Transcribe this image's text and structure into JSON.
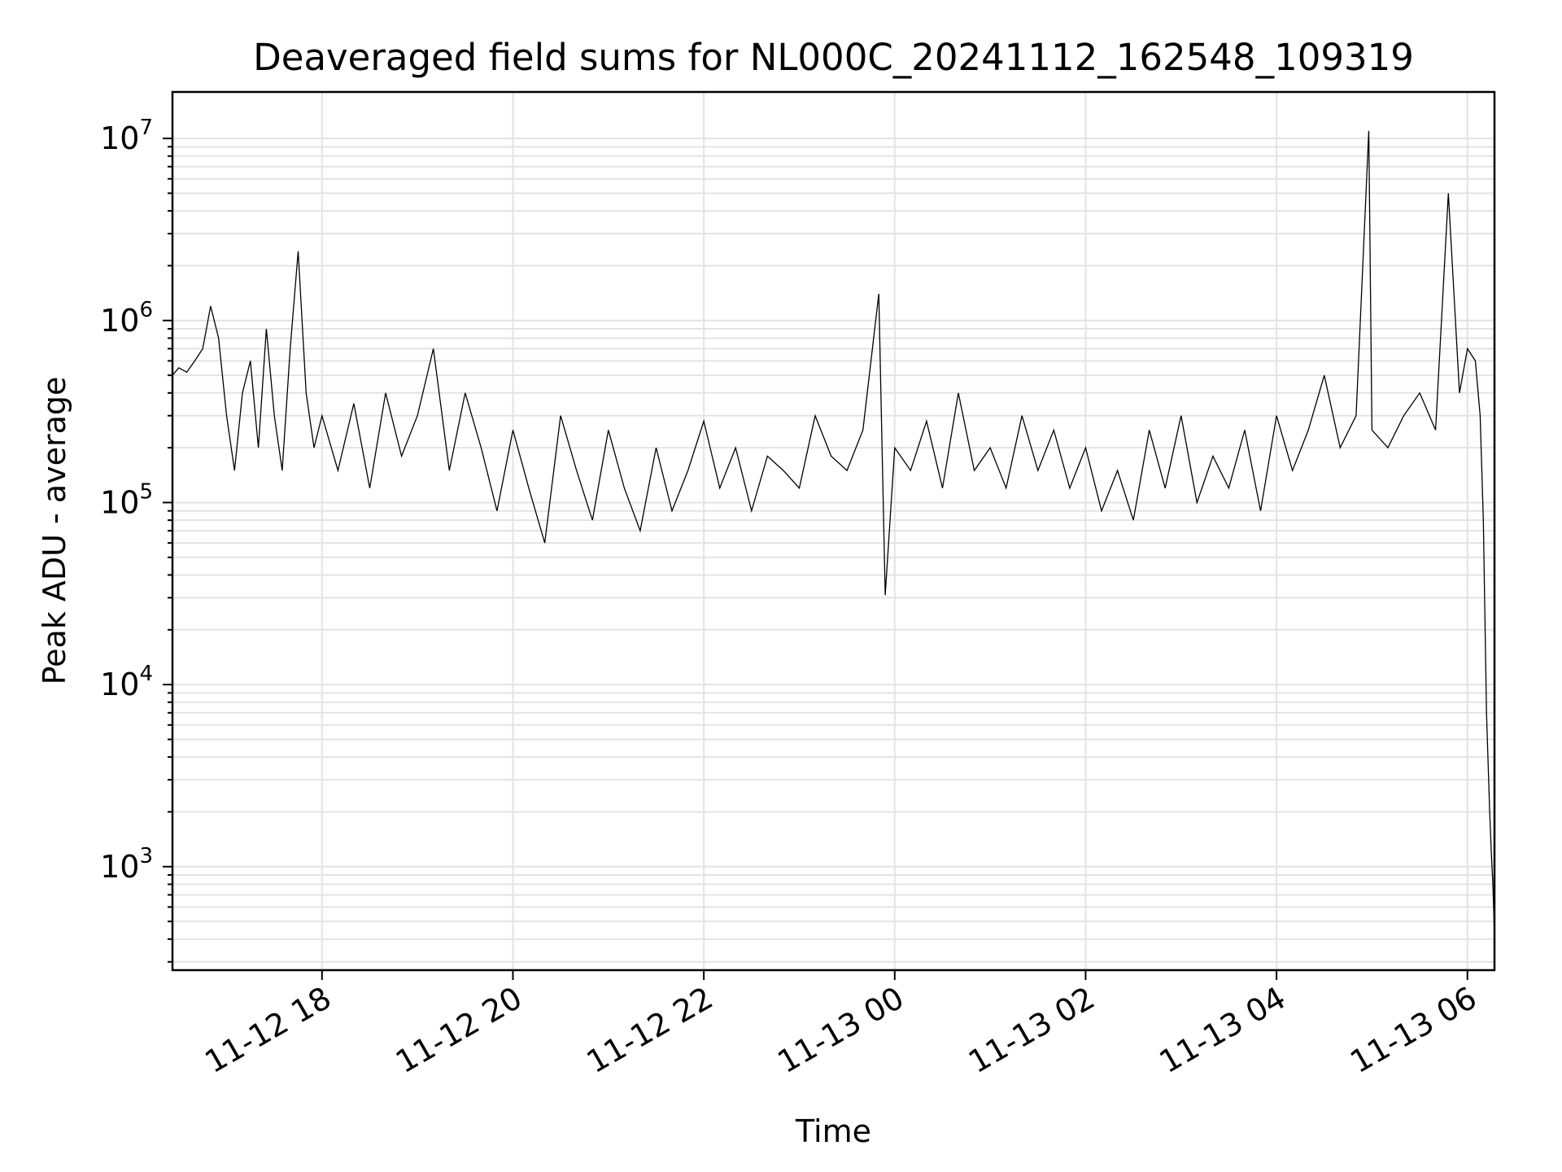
{
  "chart_data": {
    "type": "line",
    "title": "Deaveraged field sums for NL000C_20241112_162548_109319",
    "xlabel": "Time",
    "ylabel": "Peak ADU - average",
    "yscale": "log",
    "ylim": [
      270,
      18000000
    ],
    "xlim": [
      "2024-11-12 16:26",
      "2024-11-13 06:17"
    ],
    "grid": true,
    "x_ticks": [
      {
        "value": "2024-11-12 18:00",
        "label": "11-12 18"
      },
      {
        "value": "2024-11-12 20:00",
        "label": "11-12 20"
      },
      {
        "value": "2024-11-12 22:00",
        "label": "11-12 22"
      },
      {
        "value": "2024-11-13 00:00",
        "label": "11-13 00"
      },
      {
        "value": "2024-11-13 02:00",
        "label": "11-13 02"
      },
      {
        "value": "2024-11-13 04:00",
        "label": "11-13 04"
      },
      {
        "value": "2024-11-13 06:00",
        "label": "11-13 06"
      }
    ],
    "y_ticks": [
      {
        "value": 1000,
        "base": "10",
        "exp": "3"
      },
      {
        "value": 10000,
        "base": "10",
        "exp": "4"
      },
      {
        "value": 100000,
        "base": "10",
        "exp": "5"
      },
      {
        "value": 1000000,
        "base": "10",
        "exp": "6"
      },
      {
        "value": 10000000,
        "base": "10",
        "exp": "7"
      }
    ],
    "series": [
      {
        "color": "#000000",
        "x": [
          "2024-11-12 16:26",
          "2024-11-12 16:30",
          "2024-11-12 16:35",
          "2024-11-12 16:40",
          "2024-11-12 16:45",
          "2024-11-12 16:50",
          "2024-11-12 16:55",
          "2024-11-12 17:00",
          "2024-11-12 17:05",
          "2024-11-12 17:10",
          "2024-11-12 17:15",
          "2024-11-12 17:20",
          "2024-11-12 17:25",
          "2024-11-12 17:30",
          "2024-11-12 17:35",
          "2024-11-12 17:40",
          "2024-11-12 17:45",
          "2024-11-12 17:50",
          "2024-11-12 17:55",
          "2024-11-12 18:00",
          "2024-11-12 18:10",
          "2024-11-12 18:20",
          "2024-11-12 18:30",
          "2024-11-12 18:40",
          "2024-11-12 18:50",
          "2024-11-12 19:00",
          "2024-11-12 19:10",
          "2024-11-12 19:20",
          "2024-11-12 19:30",
          "2024-11-12 19:40",
          "2024-11-12 19:50",
          "2024-11-12 20:00",
          "2024-11-12 20:10",
          "2024-11-12 20:20",
          "2024-11-12 20:30",
          "2024-11-12 20:40",
          "2024-11-12 20:50",
          "2024-11-12 21:00",
          "2024-11-12 21:10",
          "2024-11-12 21:20",
          "2024-11-12 21:30",
          "2024-11-12 21:40",
          "2024-11-12 21:50",
          "2024-11-12 22:00",
          "2024-11-12 22:10",
          "2024-11-12 22:20",
          "2024-11-12 22:30",
          "2024-11-12 22:40",
          "2024-11-12 22:50",
          "2024-11-12 23:00",
          "2024-11-12 23:10",
          "2024-11-12 23:20",
          "2024-11-12 23:30",
          "2024-11-12 23:40",
          "2024-11-12 23:50",
          "2024-11-12 23:54",
          "2024-11-13 00:00",
          "2024-11-13 00:10",
          "2024-11-13 00:20",
          "2024-11-13 00:30",
          "2024-11-13 00:40",
          "2024-11-13 00:50",
          "2024-11-13 01:00",
          "2024-11-13 01:10",
          "2024-11-13 01:20",
          "2024-11-13 01:30",
          "2024-11-13 01:40",
          "2024-11-13 01:50",
          "2024-11-13 02:00",
          "2024-11-13 02:10",
          "2024-11-13 02:20",
          "2024-11-13 02:30",
          "2024-11-13 02:40",
          "2024-11-13 02:50",
          "2024-11-13 03:00",
          "2024-11-13 03:10",
          "2024-11-13 03:20",
          "2024-11-13 03:30",
          "2024-11-13 03:40",
          "2024-11-13 03:50",
          "2024-11-13 04:00",
          "2024-11-13 04:10",
          "2024-11-13 04:20",
          "2024-11-13 04:30",
          "2024-11-13 04:40",
          "2024-11-13 04:50",
          "2024-11-13 04:58",
          "2024-11-13 05:00",
          "2024-11-13 05:10",
          "2024-11-13 05:20",
          "2024-11-13 05:30",
          "2024-11-13 05:40",
          "2024-11-13 05:48",
          "2024-11-13 05:55",
          "2024-11-13 06:00",
          "2024-11-13 06:05",
          "2024-11-13 06:08",
          "2024-11-13 06:10",
          "2024-11-13 06:12",
          "2024-11-13 06:14",
          "2024-11-13 06:15",
          "2024-11-13 06:16",
          "2024-11-13 06:17"
        ],
        "y": [
          500000,
          550000,
          520000,
          600000,
          700000,
          1200000,
          800000,
          300000,
          150000,
          400000,
          600000,
          200000,
          900000,
          300000,
          150000,
          700000,
          2400000,
          400000,
          200000,
          300000,
          150000,
          350000,
          120000,
          400000,
          180000,
          300000,
          700000,
          150000,
          400000,
          200000,
          90000,
          250000,
          120000,
          60000,
          300000,
          150000,
          80000,
          250000,
          120000,
          70000,
          200000,
          90000,
          150000,
          280000,
          120000,
          200000,
          90000,
          180000,
          150000,
          120000,
          300000,
          180000,
          150000,
          250000,
          1400000,
          31000,
          200000,
          150000,
          280000,
          120000,
          400000,
          150000,
          200000,
          120000,
          300000,
          150000,
          250000,
          120000,
          200000,
          90000,
          150000,
          80000,
          250000,
          120000,
          300000,
          100000,
          180000,
          120000,
          250000,
          90000,
          300000,
          150000,
          250000,
          500000,
          200000,
          300000,
          11000000,
          250000,
          200000,
          300000,
          400000,
          250000,
          5000000,
          400000,
          700000,
          600000,
          300000,
          80000,
          7000,
          2000,
          1200,
          800,
          430
        ]
      }
    ]
  }
}
